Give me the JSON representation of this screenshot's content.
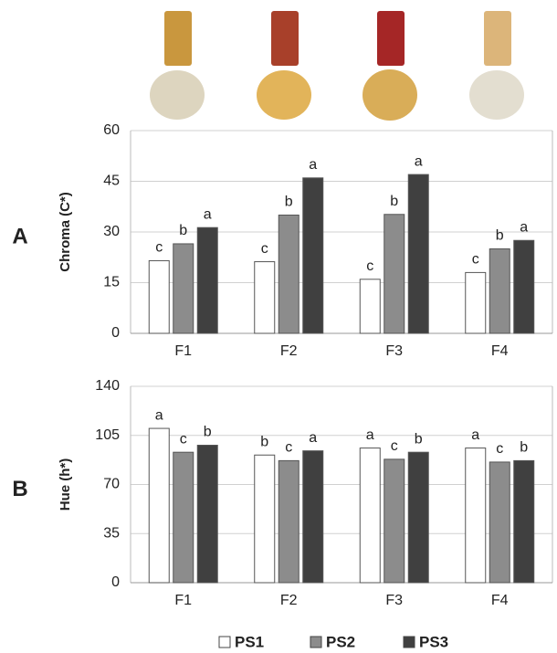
{
  "chart_data": [
    {
      "type": "bar",
      "panel_label": "A",
      "ylabel": "Chroma (C*)",
      "categories": [
        "F1",
        "F2",
        "F3",
        "F4"
      ],
      "series": [
        {
          "name": "PS1",
          "color": "#ffffff",
          "values": [
            21.5,
            21.2,
            16,
            18
          ],
          "labels": [
            "c",
            "c",
            "c",
            "c"
          ]
        },
        {
          "name": "PS2",
          "color": "#8c8c8c",
          "values": [
            26.5,
            35,
            35.2,
            25
          ],
          "labels": [
            "b",
            "b",
            "b",
            "b"
          ]
        },
        {
          "name": "PS3",
          "color": "#404040",
          "values": [
            31.3,
            46,
            47,
            27.5
          ],
          "labels": [
            "a",
            "a",
            "a",
            "a"
          ]
        }
      ],
      "ylim": [
        0,
        60
      ],
      "yticks": [
        0,
        15,
        30,
        45,
        60
      ],
      "grid": true
    },
    {
      "type": "bar",
      "panel_label": "B",
      "ylabel": "Hue (h*)",
      "categories": [
        "F1",
        "F2",
        "F3",
        "F4"
      ],
      "series": [
        {
          "color": "#ffffff",
          "values": [
            110,
            91,
            96,
            96
          ],
          "labels": [
            "a",
            "b",
            "a",
            "a"
          ]
        },
        {
          "color": "#8c8c8c",
          "values": [
            93,
            87,
            88,
            86
          ],
          "labels": [
            "c",
            "c",
            "c",
            "c"
          ]
        },
        {
          "color": "#404040",
          "values": [
            98,
            94,
            93,
            87
          ],
          "labels": [
            "b",
            "a",
            "b",
            "b"
          ]
        }
      ],
      "ylim": [
        0,
        140
      ],
      "yticks": [
        0,
        35,
        70,
        105,
        140
      ],
      "grid": true
    }
  ]
}
